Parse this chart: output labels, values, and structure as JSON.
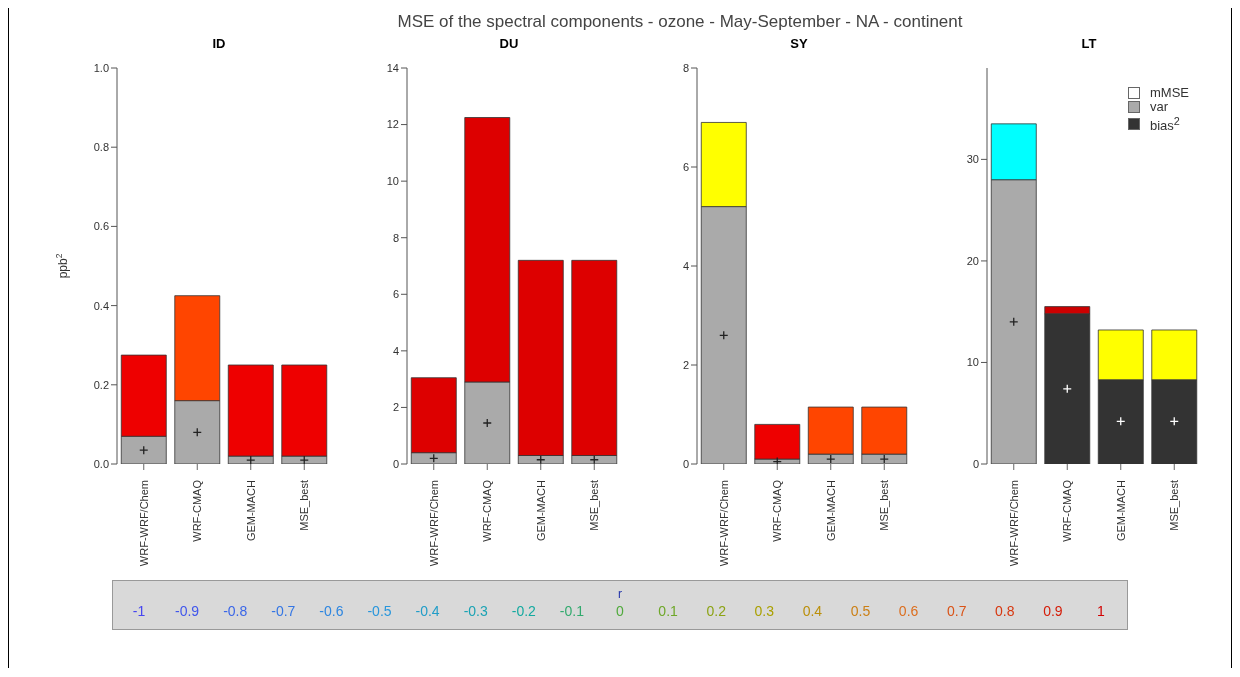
{
  "chart_data": [
    {
      "type": "bar",
      "title": "ID",
      "ylabel": "ppb$^{2}$",
      "annotations": [
        "MSE  of the spectral components -  ozone - May-September - NA - continent"
      ],
      "stacked": true,
      "categories": [
        "WRF-WRF/Chem",
        "WRF-CMAQ",
        "GEM-MACH",
        "MSE_best"
      ],
      "ylim": [
        0,
        1
      ],
      "yticks": [
        {
          "value": 0,
          "label": "0.0"
        },
        {
          "value": 0.2,
          "label": "0.2"
        },
        {
          "value": 0.4,
          "label": "0.4"
        },
        {
          "value": 0.6,
          "label": "0.6"
        },
        {
          "value": 0.8,
          "label": "0.8"
        },
        {
          "value": 1,
          "label": "1.0"
        }
      ],
      "series": [
        {
          "color": "#333333",
          "values": [
            0,
            0,
            0,
            0
          ]
        },
        {
          "color": "#aaaaaa",
          "values": [
            0.07,
            0.16,
            0.02,
            0.02
          ]
        },
        {
          "colors": [
            "#ee0000",
            "#ff4500",
            "#ee0000",
            "#ee0000"
          ],
          "values": [
            0.205,
            0.265,
            0.23,
            0.23
          ]
        },
        {
          "type": "scatter",
          "marker": "cross",
          "colors": [
            "#222222",
            "#222222",
            "#222222",
            "#222222"
          ],
          "values": [
            0.035,
            0.08,
            0.01,
            0.01
          ]
        }
      ]
    },
    {
      "type": "bar",
      "title": "DU",
      "stacked": true,
      "categories": [
        "WRF-WRF/Chem",
        "WRF-CMAQ",
        "GEM-MACH",
        "MSE_best"
      ],
      "ylim": [
        0,
        14
      ],
      "yticks": [
        0,
        2,
        4,
        6,
        8,
        10,
        12,
        14
      ],
      "series": [
        {
          "color": "#333333",
          "values": [
            0,
            0,
            0,
            0
          ]
        },
        {
          "color": "#aaaaaa",
          "values": [
            0.4,
            2.9,
            0.3,
            0.3
          ]
        },
        {
          "colors": [
            "#dd0000",
            "#dd0000",
            "#dd0000",
            "#dd0000"
          ],
          "values": [
            2.65,
            9.35,
            6.9,
            6.9
          ]
        },
        {
          "type": "scatter",
          "marker": "cross",
          "colors": [
            "#222222",
            "#222222",
            "#222222",
            "#222222"
          ],
          "values": [
            0.2,
            1.45,
            0.15,
            0.15
          ]
        }
      ]
    },
    {
      "type": "bar",
      "title": "SY",
      "stacked": true,
      "categories": [
        "WRF-WRF/Chem",
        "WRF-CMAQ",
        "GEM-MACH",
        "MSE_best"
      ],
      "ylim": [
        0,
        8
      ],
      "yticks": [
        0,
        2,
        4,
        6,
        8
      ],
      "series": [
        {
          "color": "#333333",
          "values": [
            0,
            0,
            0,
            0
          ]
        },
        {
          "color": "#aaaaaa",
          "values": [
            5.2,
            0.1,
            0.2,
            0.2
          ]
        },
        {
          "colors": [
            "#ffff00",
            "#ee0000",
            "#ff4500",
            "#ff4500"
          ],
          "values": [
            1.7,
            0.7,
            0.95,
            0.95
          ]
        },
        {
          "type": "scatter",
          "marker": "cross",
          "colors": [
            "#222222",
            "#222222",
            "#222222",
            "#222222"
          ],
          "values": [
            2.6,
            0.05,
            0.1,
            0.1
          ]
        }
      ]
    },
    {
      "type": "bar",
      "title": "LT",
      "annotations": [
        "mMSE"
      ],
      "stacked": true,
      "legend": "top right",
      "clabel": "r",
      "clim": [
        -1,
        1
      ],
      "cticks": [
        -1,
        -0.9,
        -0.8,
        -0.7,
        -0.6,
        -0.5,
        -0.4,
        -0.3,
        -0.2,
        -0.1,
        0,
        0.1,
        0.2,
        0.3,
        0.4,
        0.5,
        0.6,
        0.7,
        0.8,
        0.9,
        1
      ],
      "categories": [
        "WRF-WRF/Chem",
        "WRF-CMAQ",
        "GEM-MACH",
        "MSE_best"
      ],
      "ylim": [
        0,
        39
      ],
      "yticks": [
        0,
        10,
        20,
        30
      ],
      "series": [
        {
          "name": "bias$^{2}$",
          "color": "#333333",
          "values": [
            0,
            14.8,
            8.3,
            8.3
          ]
        },
        {
          "name": "var",
          "color": "#aaaaaa",
          "values": [
            28,
            0,
            0,
            0
          ]
        },
        {
          "colors": [
            "#00ffff",
            "#cc0000",
            "#ffff00",
            "#ffff00"
          ],
          "values": [
            5.5,
            0.7,
            4.9,
            4.9
          ]
        },
        {
          "type": "scatter",
          "marker": "cross",
          "colors": [
            "#222222",
            "#ffffff",
            "#ffffff",
            "#ffffff"
          ],
          "values": [
            14,
            7.4,
            4.2,
            4.2
          ]
        }
      ]
    }
  ]
}
